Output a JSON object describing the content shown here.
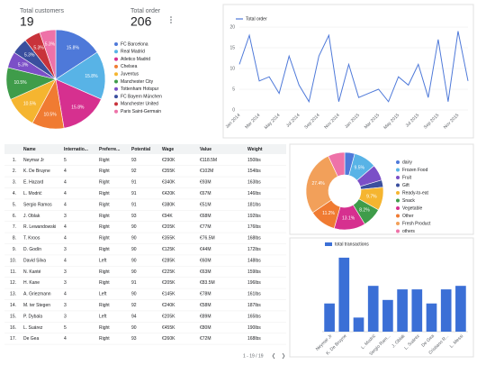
{
  "scorecards": [
    {
      "label": "Total customers",
      "value": 19
    },
    {
      "label": "Total order",
      "value": 206
    }
  ],
  "chart_data": [
    {
      "type": "pie",
      "categories": [
        "FC Barcelona",
        "Real Madrid",
        "Atletico Madrid",
        "Chelsea",
        "Juventus",
        "Manchester City",
        "Tottenham Hotspur",
        "FC Bayern München",
        "Manchester United",
        "Paris Saint-Germain"
      ],
      "values": [
        15.8,
        15.8,
        15.8,
        10.5,
        10.5,
        10.5,
        5.3,
        5.3,
        5.3,
        5.3
      ],
      "value_labels": [
        "15.8%",
        "15.8%",
        "15.8%",
        "10.5%",
        "10.5%",
        "10.5%",
        "5.3%",
        "5.3%",
        "5.3%",
        "5.3%"
      ],
      "colors": [
        "#4e79d9",
        "#58b3e6",
        "#d6308f",
        "#f07b32",
        "#f5b530",
        "#3f9c4a",
        "#7b4fc7",
        "#3a4f9e",
        "#c8333b",
        "#ee72a8"
      ]
    },
    {
      "type": "line",
      "series": [
        {
          "name": "Total order",
          "color": "#4e79d9",
          "values": [
            11,
            18,
            7,
            8,
            4,
            13,
            6,
            2,
            13,
            18,
            2,
            11,
            3,
            4,
            5,
            2,
            8,
            6,
            11,
            3,
            17,
            2,
            19,
            7
          ]
        }
      ],
      "categories": [
        "Jan 2014",
        null,
        "Mar 2014",
        null,
        "May 2014",
        null,
        "Jul 2014",
        null,
        "Sep 2014",
        null,
        "Nov 2014",
        null,
        "Jan 2015",
        null,
        "Mar 2015",
        null,
        "May 2015",
        null,
        "Jul 2015",
        null,
        "Sep 2015",
        null,
        "Nov 2015",
        null
      ],
      "ylim": [
        0,
        20
      ],
      "yticks": [
        0,
        5,
        10,
        15,
        20
      ],
      "grid": true
    },
    {
      "type": "donut",
      "categories": [
        "dairy",
        "Frozen Food",
        "Fruit",
        "Gift",
        "Ready-to-eat",
        "Snack",
        "Vegetable",
        "Other",
        "Fresh Product",
        "others"
      ],
      "values": [
        4.2,
        9.5,
        6.7,
        3,
        9.7,
        8.2,
        13.1,
        11.2,
        27.4,
        7
      ],
      "value_labels": [
        null,
        "9.5%",
        null,
        null,
        "9.7%",
        "8.2%",
        "13.1%",
        "11.2%",
        "27.4%",
        null
      ],
      "colors": [
        "#4e79d9",
        "#58b3e6",
        "#7b4fc7",
        "#3a4f9e",
        "#f5b530",
        "#3f9c4a",
        "#d6308f",
        "#f07b32",
        "#f2a05a",
        "#ee72a8"
      ]
    },
    {
      "type": "bar",
      "series": [
        {
          "name": "total transactions",
          "color": "#3b6fd6",
          "values": [
            8,
            21,
            4,
            13,
            9,
            12,
            12,
            8,
            12,
            13
          ]
        }
      ],
      "categories": [
        "Neymar Jr",
        "K. De Bruyne",
        null,
        "L. Modrić",
        "Sergio Ram...",
        "J. Oblak",
        "L. Suárez",
        "De Gea",
        "Cristiano R...",
        "L. Messi"
      ],
      "ylim": [
        0,
        22
      ]
    }
  ],
  "table": {
    "columns": [
      "Name",
      "Internatio...",
      "Preferre...",
      "Potential",
      "Wage",
      "Value",
      "Weight"
    ],
    "rows": [
      [
        "Neymar Jr",
        5,
        "Right",
        93,
        "€290K",
        "€118.5M",
        "150lbs"
      ],
      [
        "K. De Bruyne",
        4,
        "Right",
        92,
        "€355K",
        "€102M",
        "154lbs"
      ],
      [
        "E. Hazard",
        4,
        "Right",
        91,
        "€340K",
        "€93M",
        "163lbs"
      ],
      [
        "L. Modrić",
        4,
        "Right",
        91,
        "€420K",
        "€67M",
        "146lbs"
      ],
      [
        "Sergio Ramos",
        4,
        "Right",
        91,
        "€380K",
        "€51M",
        "181lbs"
      ],
      [
        "J. Oblak",
        3,
        "Right",
        93,
        "€94K",
        "€68M",
        "192lbs"
      ],
      [
        "R. Lewandowski",
        4,
        "Right",
        90,
        "€205K",
        "€77M",
        "176lbs"
      ],
      [
        "T. Kroos",
        4,
        "Right",
        90,
        "€355K",
        "€76.5M",
        "168lbs"
      ],
      [
        "D. Godín",
        3,
        "Right",
        90,
        "€125K",
        "€44M",
        "172lbs"
      ],
      [
        "David Silva",
        4,
        "Left",
        90,
        "€285K",
        "€60M",
        "148lbs"
      ],
      [
        "N. Kanté",
        3,
        "Right",
        90,
        "€225K",
        "€63M",
        "159lbs"
      ],
      [
        "H. Kane",
        3,
        "Right",
        91,
        "€205K",
        "€83.5M",
        "196lbs"
      ],
      [
        "A. Griezmann",
        4,
        "Left",
        90,
        "€145K",
        "€78M",
        "161lbs"
      ],
      [
        "M. ter Stegen",
        3,
        "Right",
        92,
        "€240K",
        "€58M",
        "187lbs"
      ],
      [
        "P. Dybala",
        3,
        "Left",
        94,
        "€205K",
        "€89M",
        "165lbs"
      ],
      [
        "L. Suárez",
        5,
        "Right",
        90,
        "€455K",
        "€80M",
        "190lbs"
      ],
      [
        "De Gea",
        4,
        "Right",
        93,
        "€260K",
        "€72M",
        "168lbs"
      ]
    ],
    "pagination": "1 - 19 / 19"
  }
}
